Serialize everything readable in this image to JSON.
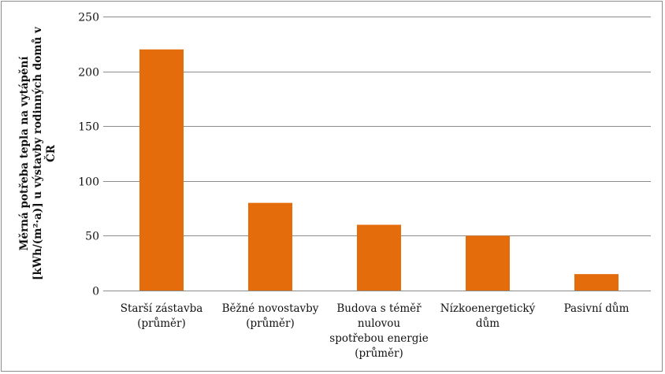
{
  "chart_data": {
    "type": "bar",
    "title": "",
    "xlabel": "",
    "ylabel_lines": [
      "Měrná potřeba tepla na vytápění",
      "[kWh/(m²·a)] u výstavby rodinných domů v",
      "ČR"
    ],
    "categories": [
      [
        "Starší zástavba",
        "(průměr)"
      ],
      [
        "Běžné novostavby",
        "(průměr)"
      ],
      [
        "Budova s téměř",
        "nulovou",
        "spotřebou energie",
        "(průměr)"
      ],
      [
        "Nízkoenergetický",
        "dům"
      ],
      [
        "Pasivní dům"
      ]
    ],
    "values": [
      220,
      80,
      60,
      50,
      15
    ],
    "ylim": [
      0,
      250
    ],
    "yticks": [
      0,
      50,
      100,
      150,
      200,
      250
    ],
    "grid": true,
    "legend": "none",
    "bar_color": "#E46C0A",
    "grid_color": "#8c8c8c"
  }
}
